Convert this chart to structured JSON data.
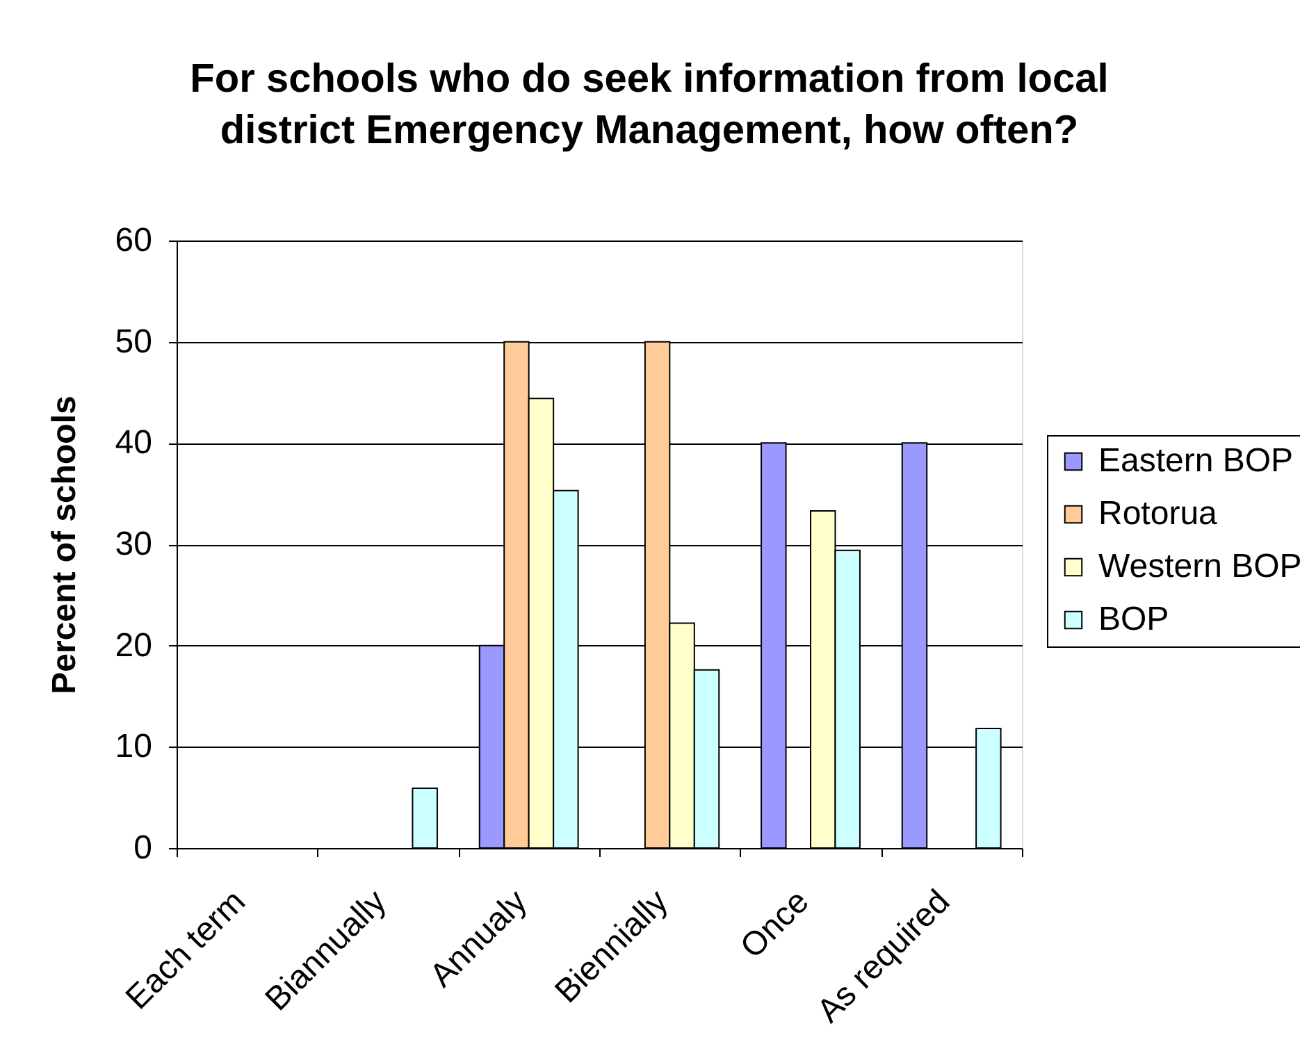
{
  "chart_data": {
    "type": "bar",
    "title": "For schools who do seek information from local district Emergency Management, how often?",
    "ylabel": "Percent of schools",
    "categories": [
      "Each term",
      "Biannually",
      "Annualy",
      "Biennially",
      "Once",
      "As required"
    ],
    "series": [
      {
        "name": "Eastern BOP",
        "color": "#9999ff",
        "values": [
          null,
          null,
          20,
          null,
          40,
          40
        ]
      },
      {
        "name": "Rotorua",
        "color": "#ffcc99",
        "values": [
          null,
          null,
          50,
          50,
          null,
          null
        ]
      },
      {
        "name": "Western BOP",
        "color": "#ffffcc",
        "values": [
          null,
          null,
          44.4,
          22.2,
          33.3,
          null
        ]
      },
      {
        "name": "BOP",
        "color": "#ccffff",
        "values": [
          null,
          5.9,
          35.3,
          17.6,
          29.4,
          11.8
        ]
      }
    ],
    "ylim": [
      0,
      60
    ],
    "yticks": [
      0,
      10,
      20,
      30,
      40,
      50,
      60
    ],
    "grid": "y",
    "legend": "right"
  }
}
